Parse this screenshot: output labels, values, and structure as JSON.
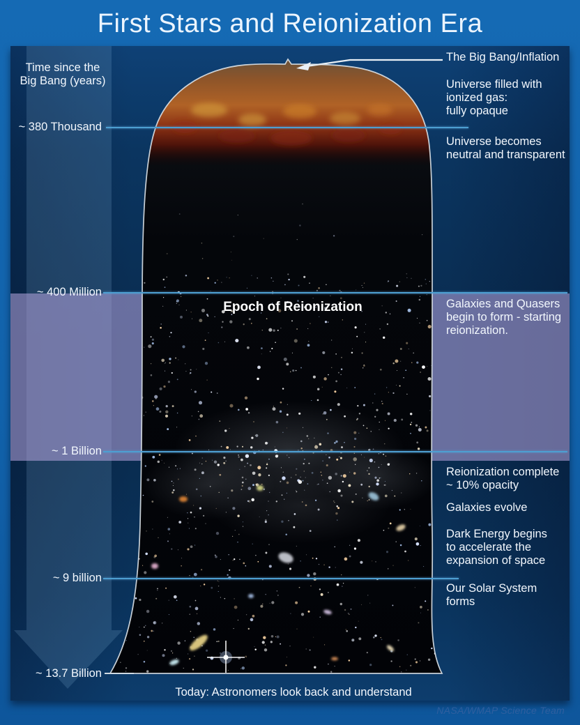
{
  "header": {
    "title": "First Stars and Reionization Era"
  },
  "axis": {
    "label": "Time since the\nBig Bang (years)"
  },
  "markers": [
    {
      "label": "~ 380 Thousand"
    },
    {
      "label": "~ 400 Million"
    },
    {
      "label": "~ 1 Billion"
    },
    {
      "label": "~ 9 billion"
    },
    {
      "label": "~ 13.7 Billion"
    }
  ],
  "notes": [
    {
      "text": "The Big Bang/Inflation"
    },
    {
      "text": "Universe filled with\nionized gas:\nfully opaque"
    },
    {
      "text": "Universe becomes\nneutral and transparent"
    },
    {
      "text": "Galaxies and Quasers\nbegin to form - starting\nreionization."
    },
    {
      "text": "Reionization complete\n~ 10% opacity"
    },
    {
      "text": "Galaxies evolve"
    },
    {
      "text": "Dark Energy begins\nto accelerate the\nexpansion of space"
    },
    {
      "text": "Our Solar System\nforms"
    }
  ],
  "bell": {
    "epoch_label": "Epoch of Reionization",
    "footer": "Today: Astronomers look back and understand"
  },
  "credit": "NASA/WMAP Science Team",
  "colors": {
    "frame_blue": "#1263ac",
    "panel_navy": "#092c50",
    "timeline_line": "#4d9fd2",
    "reionization_band": "#b0a0d9",
    "fire_orange": "#b06226",
    "credit_blue": "#2f5f9f"
  }
}
